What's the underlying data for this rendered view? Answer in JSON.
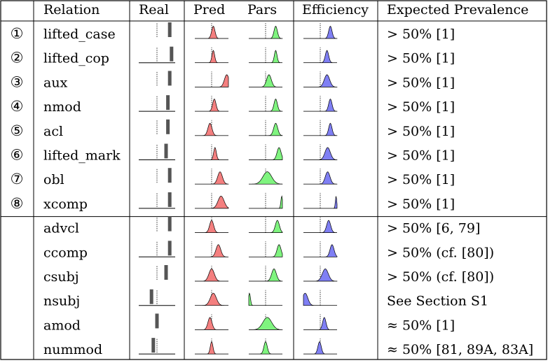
{
  "table": {
    "headers": [
      "",
      "Relation",
      "Real",
      "Pred",
      "Pars",
      "Efficiency",
      "Expected Prevalence"
    ],
    "colors": {
      "pred_fill": "#f47f7f",
      "pars_fill": "#7ff47f",
      "eff_fill": "#7f7ff4",
      "real_bar": "#555555"
    },
    "rows": [
      {
        "num": "①",
        "relation": "lifted_case",
        "prevalence": "> 50% [1]",
        "group": 1,
        "real": {
          "pos": 0.85,
          "baseline": false
        },
        "pred": {
          "mu": 0.55,
          "sigma": 0.05,
          "h": 0.8
        },
        "pars": {
          "mu": 0.8,
          "sigma": 0.05,
          "h": 0.8
        },
        "eff": {
          "mu": 0.8,
          "sigma": 0.05,
          "h": 0.8
        }
      },
      {
        "num": "②",
        "relation": "lifted_cop",
        "prevalence": "> 50% [1]",
        "group": 1,
        "real": {
          "pos": 0.9,
          "baseline": true
        },
        "pred": {
          "mu": 0.55,
          "sigma": 0.04,
          "h": 0.8
        },
        "pars": {
          "mu": 0.8,
          "sigma": 0.04,
          "h": 0.8
        },
        "eff": {
          "mu": 0.7,
          "sigma": 0.05,
          "h": 0.8
        }
      },
      {
        "num": "③",
        "relation": "aux",
        "prevalence": "> 50% [1]",
        "group": 1,
        "real": {
          "pos": 0.85,
          "baseline": false
        },
        "pred": {
          "mu": 0.95,
          "sigma": 0.07,
          "h": 0.8
        },
        "pars": {
          "mu": 0.6,
          "sigma": 0.07,
          "h": 0.8
        },
        "eff": {
          "mu": 0.7,
          "sigma": 0.08,
          "h": 0.8
        }
      },
      {
        "num": "④",
        "relation": "nmod",
        "prevalence": "> 50% [1]",
        "group": 1,
        "real": {
          "pos": 0.8,
          "baseline": true
        },
        "pred": {
          "mu": 0.58,
          "sigma": 0.05,
          "h": 0.8
        },
        "pars": {
          "mu": 0.8,
          "sigma": 0.05,
          "h": 0.8
        },
        "eff": {
          "mu": 0.8,
          "sigma": 0.05,
          "h": 0.8
        }
      },
      {
        "num": "⑤",
        "relation": "acl",
        "prevalence": "> 50% [1]",
        "group": 1,
        "real": {
          "pos": 0.8,
          "baseline": false
        },
        "pred": {
          "mu": 0.45,
          "sigma": 0.06,
          "h": 0.8
        },
        "pars": {
          "mu": 0.8,
          "sigma": 0.06,
          "h": 0.8
        },
        "eff": {
          "mu": 0.8,
          "sigma": 0.05,
          "h": 0.8
        }
      },
      {
        "num": "⑥",
        "relation": "lifted_mark",
        "prevalence": "> 50% [1]",
        "group": 1,
        "real": {
          "pos": 0.75,
          "baseline": true
        },
        "pred": {
          "mu": 0.6,
          "sigma": 0.04,
          "h": 0.8
        },
        "pars": {
          "mu": 0.9,
          "sigma": 0.06,
          "h": 0.8
        },
        "eff": {
          "mu": 0.72,
          "sigma": 0.08,
          "h": 0.8
        }
      },
      {
        "num": "⑦",
        "relation": "obl",
        "prevalence": "> 50% [1]",
        "group": 1,
        "real": {
          "pos": 0.85,
          "baseline": false
        },
        "pred": {
          "mu": 0.75,
          "sigma": 0.07,
          "h": 0.8
        },
        "pars": {
          "mu": 0.55,
          "sigma": 0.13,
          "h": 0.8
        },
        "eff": {
          "mu": 0.72,
          "sigma": 0.07,
          "h": 0.8
        }
      },
      {
        "num": "⑧",
        "relation": "xcomp",
        "prevalence": "> 50% [1]",
        "group": 1,
        "real": {
          "pos": 0.85,
          "baseline": true
        },
        "pred": {
          "mu": 0.78,
          "sigma": 0.09,
          "h": 0.8
        },
        "pars": {
          "mu": 0.98,
          "sigma": 0.025,
          "h": 0.8
        },
        "eff": {
          "mu": 0.97,
          "sigma": 0.02,
          "h": 0.8
        }
      },
      {
        "num": "",
        "relation": "advcl",
        "prevalence": "> 50% [6, 79]",
        "group": 2,
        "real": {
          "pos": 0.85,
          "baseline": false
        },
        "pred": {
          "mu": 0.5,
          "sigma": 0.06,
          "h": 0.8
        },
        "pars": {
          "mu": 0.85,
          "sigma": 0.06,
          "h": 0.8
        },
        "eff": {
          "mu": 0.75,
          "sigma": 0.06,
          "h": 0.8
        }
      },
      {
        "num": "",
        "relation": "ccomp",
        "prevalence": "> 50% (cf. [80])",
        "group": 2,
        "real": {
          "pos": 0.85,
          "baseline": true
        },
        "pred": {
          "mu": 0.7,
          "sigma": 0.07,
          "h": 0.8
        },
        "pars": {
          "mu": 0.9,
          "sigma": 0.06,
          "h": 0.8
        },
        "eff": {
          "mu": 0.85,
          "sigma": 0.06,
          "h": 0.8
        }
      },
      {
        "num": "",
        "relation": "csubj",
        "prevalence": "> 50% (cf. [80])",
        "group": 2,
        "real": {
          "pos": 0.75,
          "baseline": false
        },
        "pred": {
          "mu": 0.5,
          "sigma": 0.08,
          "h": 0.8
        },
        "pars": {
          "mu": 0.75,
          "sigma": 0.07,
          "h": 0.8
        },
        "eff": {
          "mu": 0.65,
          "sigma": 0.09,
          "h": 0.8
        }
      },
      {
        "num": "",
        "relation": "nsubj",
        "prevalence": "See Section S1",
        "group": 2,
        "real": {
          "pos": 0.35,
          "baseline": true
        },
        "pred": {
          "mu": 0.55,
          "sigma": 0.09,
          "h": 0.8
        },
        "pars": {
          "mu": 0.02,
          "sigma": 0.03,
          "h": 0.8
        },
        "eff": {
          "mu": 0.05,
          "sigma": 0.08,
          "h": 0.8
        }
      },
      {
        "num": "",
        "relation": "amod",
        "prevalence": "≈ 50% [1]",
        "group": 2,
        "real": {
          "pos": 0.5,
          "baseline": false
        },
        "pred": {
          "mu": 0.45,
          "sigma": 0.06,
          "h": 0.8
        },
        "pars": {
          "mu": 0.55,
          "sigma": 0.13,
          "h": 0.8
        },
        "eff": {
          "mu": 0.62,
          "sigma": 0.05,
          "h": 0.8
        }
      },
      {
        "num": "",
        "relation": "nummod",
        "prevalence": "≈ 50% [81, 89A, 83A]",
        "group": 2,
        "real": {
          "pos": 0.4,
          "baseline": true
        },
        "pred": {
          "mu": 0.5,
          "sigma": 0.04,
          "h": 0.8
        },
        "pars": {
          "mu": 0.5,
          "sigma": 0.05,
          "h": 0.8
        },
        "eff": {
          "mu": 0.48,
          "sigma": 0.05,
          "h": 0.8
        }
      }
    ]
  }
}
